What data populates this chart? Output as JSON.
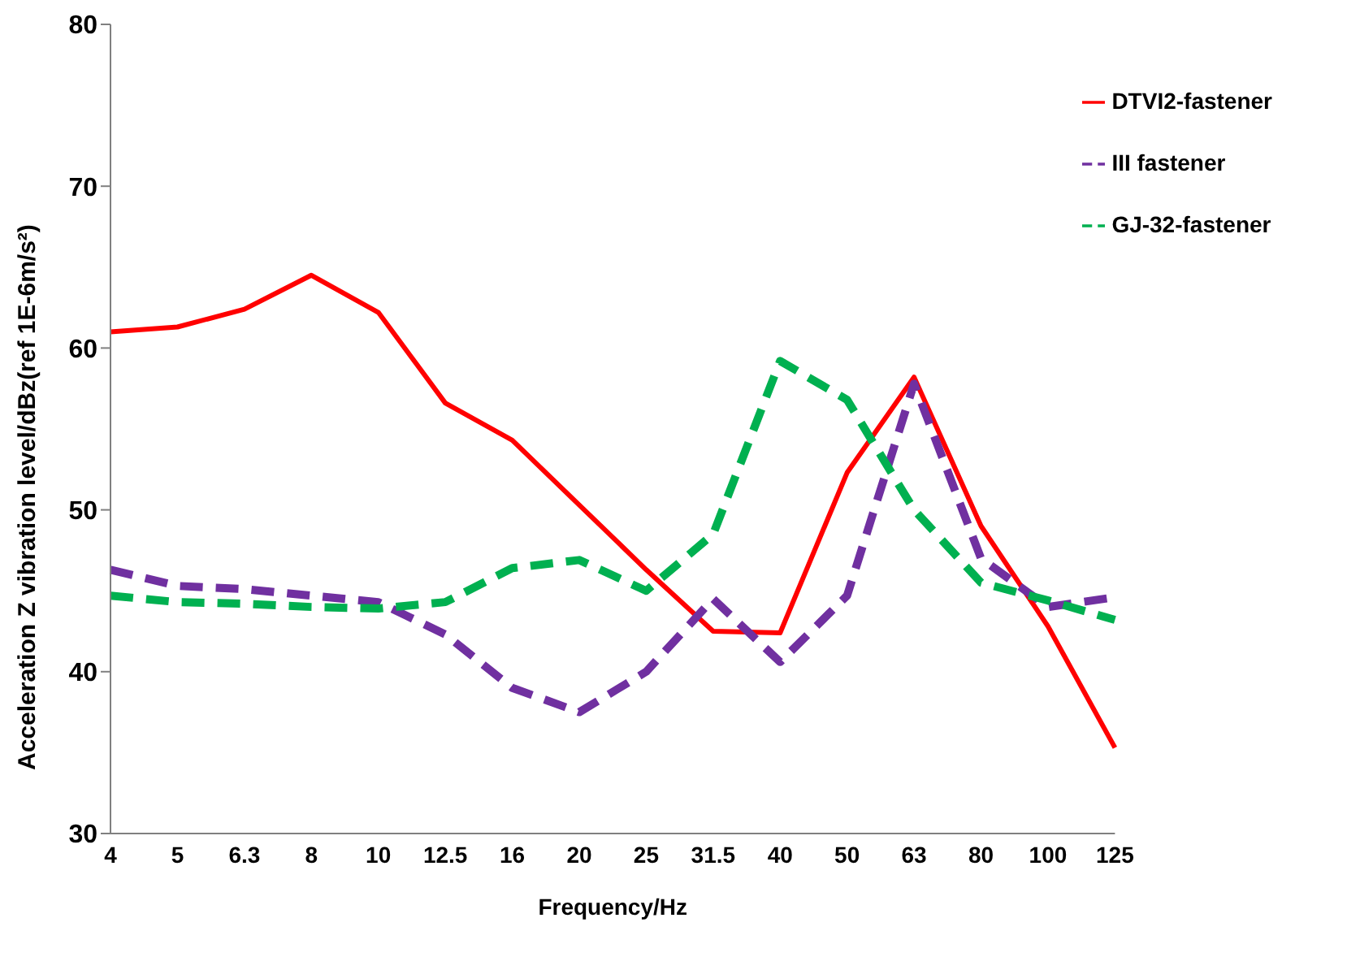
{
  "chart_data": {
    "type": "line",
    "xlabel": "Frequency/Hz",
    "ylabel": "Acceleration Z vibration level/dBz(ref 1E-6m/s²)",
    "categories": [
      "4",
      "5",
      "6.3",
      "8",
      "10",
      "12.5",
      "16",
      "20",
      "25",
      "31.5",
      "40",
      "50",
      "63",
      "80",
      "100",
      "125"
    ],
    "series": [
      {
        "name": "DTVI2-fastener",
        "color": "#ff0000",
        "line_style": "solid",
        "values": [
          61.0,
          61.3,
          62.4,
          64.5,
          62.2,
          56.6,
          54.3,
          50.3,
          46.3,
          42.5,
          42.4,
          52.3,
          58.2,
          49.0,
          42.8,
          35.3
        ]
      },
      {
        "name": "III fastener",
        "color": "#7030a0",
        "line_style": "dashed",
        "values": [
          46.3,
          45.3,
          45.1,
          44.7,
          44.3,
          42.3,
          39.0,
          37.5,
          40.0,
          44.5,
          40.6,
          44.7,
          57.8,
          47.0,
          44.0,
          44.6
        ]
      },
      {
        "name": "GJ-32-fastener",
        "color": "#00b050",
        "line_style": "dashed",
        "values": [
          44.7,
          44.3,
          44.2,
          44.0,
          43.9,
          44.3,
          46.4,
          46.9,
          45.0,
          48.5,
          59.2,
          56.8,
          50.0,
          45.5,
          44.4,
          43.2
        ]
      }
    ],
    "ylim": [
      30,
      80
    ],
    "yticks": [
      30,
      40,
      50,
      60,
      70,
      80
    ],
    "legend": "top right"
  }
}
